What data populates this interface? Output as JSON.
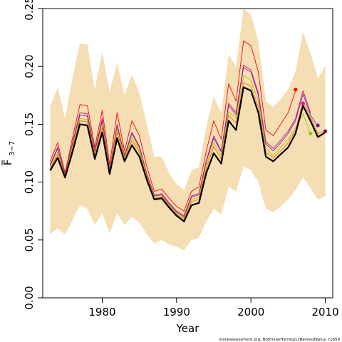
{
  "chart_data": {
    "type": "line",
    "xlabel": "Year",
    "ylabel": "F",
    "ylabel_sub": "3−7",
    "caption": "stockassessment.org, BothnianHerring12Revised9plus, r1659",
    "xlim": [
      1972,
      2011
    ],
    "ylim": [
      0.0,
      0.25
    ],
    "x_ticks": [
      1980,
      1990,
      2000,
      2010
    ],
    "y_ticks": [
      0.0,
      0.05,
      0.1,
      0.15,
      0.2,
      0.25
    ],
    "y_tick_labels": [
      "0.00",
      "0.05",
      "0.10",
      "0.15",
      "0.20",
      "0.25"
    ],
    "years": [
      1973,
      1974,
      1975,
      1976,
      1977,
      1978,
      1979,
      1980,
      1981,
      1982,
      1983,
      1984,
      1985,
      1986,
      1987,
      1988,
      1989,
      1990,
      1991,
      1992,
      1993,
      1994,
      1995,
      1996,
      1997,
      1998,
      1999,
      2000,
      2001,
      2002,
      2003,
      2004,
      2005,
      2006,
      2007,
      2008,
      2009,
      2010
    ],
    "ci_upper": [
      0.165,
      0.182,
      0.155,
      0.19,
      0.22,
      0.219,
      0.18,
      0.213,
      0.178,
      0.203,
      0.175,
      0.193,
      0.177,
      0.15,
      0.122,
      0.122,
      0.108,
      0.098,
      0.093,
      0.11,
      0.113,
      0.148,
      0.174,
      0.16,
      0.21,
      0.2,
      0.25,
      0.245,
      0.222,
      0.17,
      0.165,
      0.172,
      0.18,
      0.196,
      0.23,
      0.212,
      0.19,
      0.2
    ],
    "ci_lower": [
      0.055,
      0.06,
      0.055,
      0.067,
      0.08,
      0.077,
      0.063,
      0.073,
      0.056,
      0.073,
      0.063,
      0.07,
      0.065,
      0.055,
      0.047,
      0.05,
      0.046,
      0.044,
      0.041,
      0.05,
      0.052,
      0.066,
      0.077,
      0.072,
      0.096,
      0.092,
      0.114,
      0.11,
      0.1,
      0.077,
      0.074,
      0.079,
      0.085,
      0.093,
      0.104,
      0.095,
      0.085,
      0.088
    ],
    "series": [
      {
        "color": "#000000",
        "width": 2.2,
        "values": [
          0.11,
          0.121,
          0.104,
          0.126,
          0.15,
          0.149,
          0.12,
          0.143,
          0.107,
          0.138,
          0.118,
          0.132,
          0.122,
          0.102,
          0.085,
          0.086,
          0.078,
          0.071,
          0.066,
          0.08,
          0.082,
          0.108,
          0.125,
          0.116,
          0.153,
          0.145,
          0.182,
          0.179,
          0.16,
          0.122,
          0.118,
          0.124,
          0.13,
          0.142,
          0.166,
          0.153,
          0.139,
          0.143
        ]
      },
      {
        "color": "#ff0000",
        "width": 0.9,
        "values": [
          0.118,
          0.134,
          0.108,
          0.138,
          0.167,
          0.166,
          0.13,
          0.162,
          0.115,
          0.16,
          0.127,
          0.153,
          0.14,
          0.113,
          0.092,
          0.094,
          0.086,
          0.079,
          0.075,
          0.092,
          0.096,
          0.127,
          0.153,
          0.137,
          0.185,
          0.17,
          0.222,
          0.218,
          0.195,
          0.145,
          0.14,
          0.15,
          0.16,
          0.179
        ]
      },
      {
        "color": "#d6008a",
        "width": 0.9,
        "values": [
          0.115,
          0.13,
          0.106,
          0.134,
          0.16,
          0.159,
          0.127,
          0.155,
          0.111,
          0.15,
          0.123,
          0.143,
          0.131,
          0.107,
          0.089,
          0.09,
          0.082,
          0.075,
          0.071,
          0.088,
          0.09,
          0.119,
          0.14,
          0.127,
          0.168,
          0.16,
          0.201,
          0.197,
          0.177,
          0.135,
          0.129,
          0.136,
          0.144,
          0.155,
          0.179,
          0.16
        ]
      },
      {
        "color": "#7030a0",
        "width": 0.9,
        "values": [
          0.114,
          0.129,
          0.106,
          0.133,
          0.158,
          0.157,
          0.126,
          0.153,
          0.11,
          0.149,
          0.122,
          0.142,
          0.13,
          0.106,
          0.088,
          0.089,
          0.081,
          0.074,
          0.07,
          0.087,
          0.089,
          0.118,
          0.138,
          0.126,
          0.166,
          0.158,
          0.199,
          0.195,
          0.175,
          0.133,
          0.127,
          0.134,
          0.142,
          0.153,
          0.176,
          0.158,
          0.148
        ]
      },
      {
        "color": "#a6c800",
        "width": 0.9,
        "values": [
          0.112,
          0.126,
          0.105,
          0.131,
          0.155,
          0.154,
          0.124,
          0.15,
          0.109,
          0.146,
          0.121,
          0.139,
          0.128,
          0.105,
          0.087,
          0.088,
          0.08,
          0.073,
          0.069,
          0.085,
          0.087,
          0.115,
          0.134,
          0.123,
          0.161,
          0.155,
          0.192,
          0.188,
          0.17,
          0.129,
          0.123,
          0.13,
          0.137,
          0.147,
          0.159,
          0.142
        ]
      },
      {
        "color": "#ff6a00",
        "width": 0.9,
        "values": [
          0.111,
          0.124,
          0.105,
          0.129,
          0.153,
          0.152,
          0.122,
          0.147,
          0.108,
          0.143,
          0.12,
          0.136,
          0.126,
          0.104,
          0.086,
          0.087,
          0.079,
          0.072,
          0.068,
          0.083,
          0.085,
          0.112,
          0.131,
          0.12,
          0.158,
          0.151,
          0.186,
          0.183,
          0.165,
          0.126,
          0.121,
          0.127,
          0.134,
          0.145,
          0.17,
          0.156,
          0.142,
          0.144
        ]
      }
    ],
    "endpoints": [
      {
        "x": 2006,
        "y": 0.18,
        "color": "#ff0000"
      },
      {
        "x": 2007,
        "y": 0.168,
        "color": "#e0109a"
      },
      {
        "x": 2008,
        "y": 0.142,
        "color": "#7fcc00"
      },
      {
        "x": 2009,
        "y": 0.149,
        "color": "#6a1aa0"
      },
      {
        "x": 2010,
        "y": 0.144,
        "color": "#8b0050"
      }
    ],
    "ci_color": "#f5deb3",
    "grid": false,
    "legend": "none"
  }
}
